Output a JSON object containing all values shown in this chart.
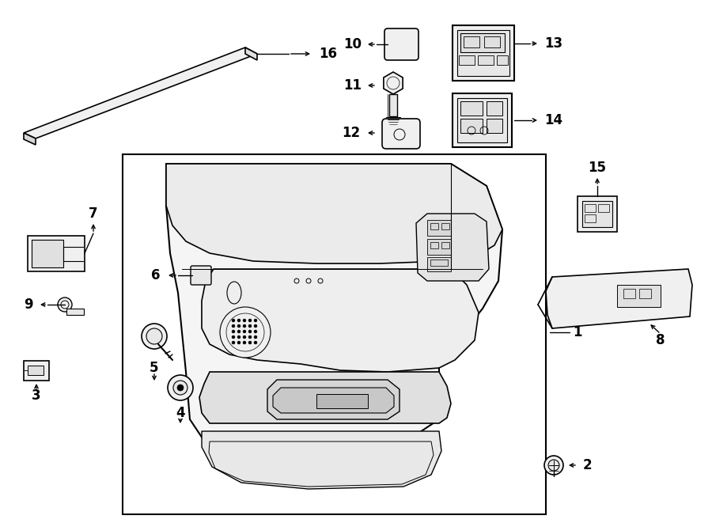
{
  "background_color": "#ffffff",
  "line_color": "#000000",
  "fig_width": 9.0,
  "fig_height": 6.61,
  "dpi": 100
}
